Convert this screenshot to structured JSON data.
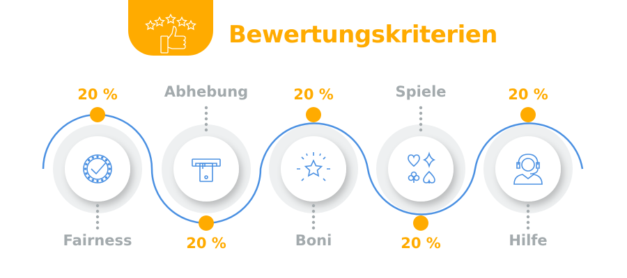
{
  "header": {
    "title": "Bewertungskriterien",
    "icon": "stars-thumbs-up-icon"
  },
  "criteria": [
    {
      "name": "Fairness",
      "percent": "20 %",
      "icon": "fairness-check-icon",
      "weight": 20
    },
    {
      "name": "Abhebung",
      "percent": "20 %",
      "icon": "atm-card-icon",
      "weight": 20
    },
    {
      "name": "Boni",
      "percent": "20 %",
      "icon": "star-burst-icon",
      "weight": 20
    },
    {
      "name": "Spiele",
      "percent": "20 %",
      "icon": "card-suits-icon",
      "weight": 20
    },
    {
      "name": "Hilfe",
      "percent": "20 %",
      "icon": "support-agent-icon",
      "weight": 20
    }
  ],
  "colors": {
    "accent": "#ffab00",
    "line": "#4a90e2",
    "label": "#a3aaad"
  }
}
